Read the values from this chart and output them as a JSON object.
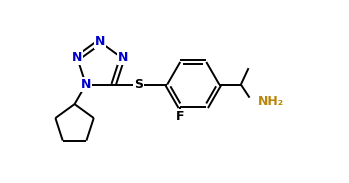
{
  "background_color": "#ffffff",
  "bond_color": "#000000",
  "n_color": "#0000cd",
  "s_color": "#000000",
  "f_color": "#000000",
  "nh2_color": "#b8860b",
  "line_width": 1.4,
  "figw": 3.49,
  "figh": 1.83,
  "dpi": 100,
  "xlim": [
    0,
    10
  ],
  "ylim": [
    0,
    5.2
  ]
}
